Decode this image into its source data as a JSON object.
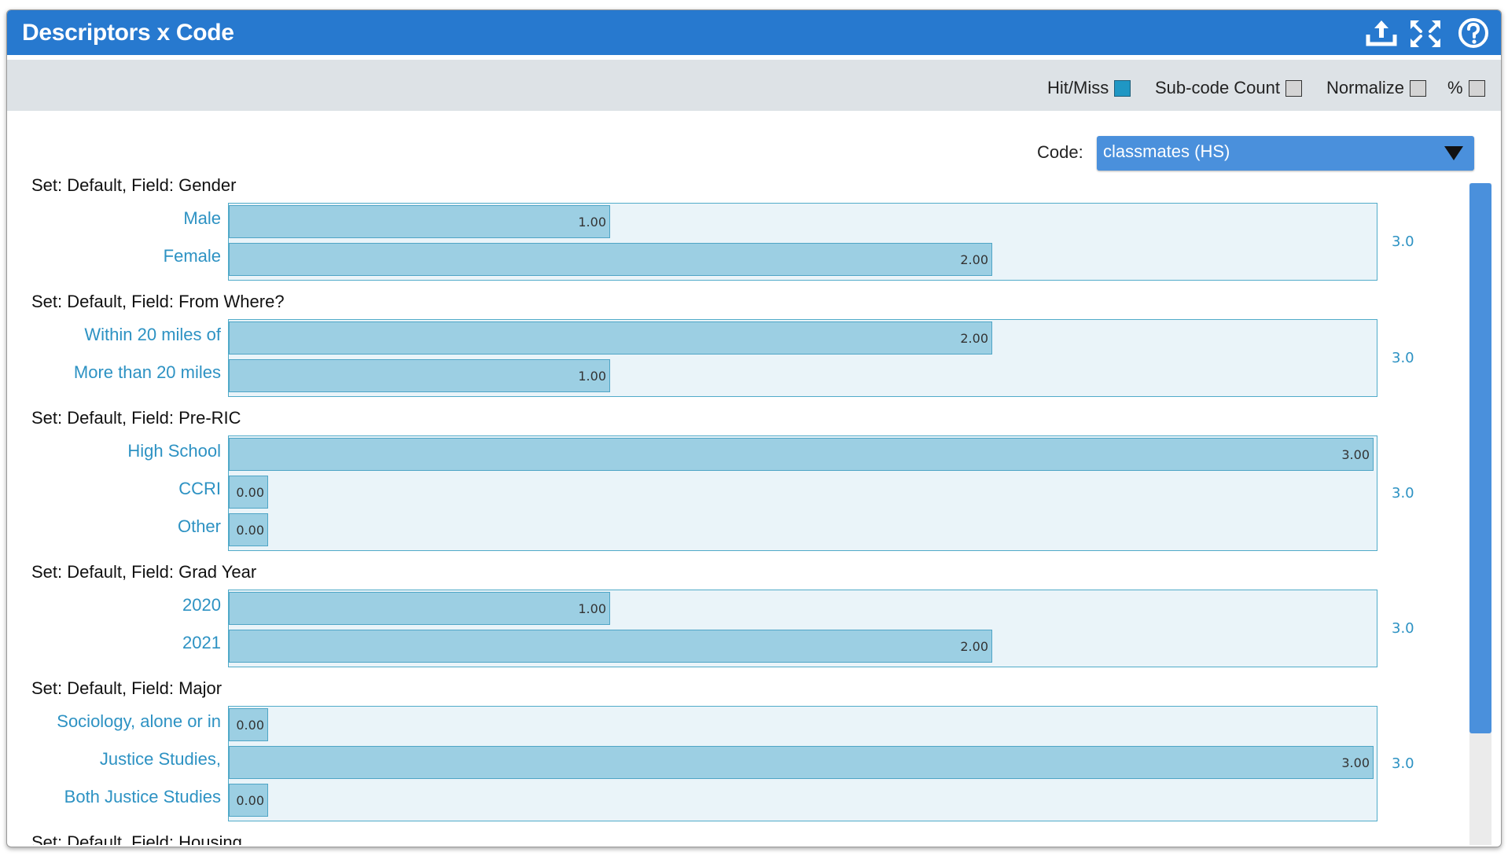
{
  "window": {
    "title": "Descriptors x Code",
    "icons": [
      "export-icon",
      "fullscreen-icon",
      "help-icon"
    ]
  },
  "toolbar": {
    "toggles": [
      {
        "label": "Hit/Miss",
        "checked": true
      },
      {
        "label": "Sub-code Count",
        "checked": false
      },
      {
        "label": "Normalize",
        "checked": false
      },
      {
        "label": "%",
        "checked": false
      }
    ]
  },
  "code": {
    "label": "Code:",
    "selected": "classmates (HS)"
  },
  "colors": {
    "title_bar": "#2779cf",
    "bar_fill": "#9ccfe3",
    "bar_border": "#4fa5c6",
    "panel_bg": "#eaf4f9",
    "label_text": "#2d92c3",
    "toggle_on": "#1f97c4"
  },
  "chart_data": {
    "type": "bar",
    "orientation": "horizontal",
    "scale_max": 3.0,
    "groups": [
      {
        "header": "Set: Default, Field: Gender",
        "total": "3.0",
        "rows": [
          {
            "label": "Male",
            "value": 1.0,
            "display": "1.00"
          },
          {
            "label": "Female",
            "value": 2.0,
            "display": "2.00"
          }
        ]
      },
      {
        "header": "Set: Default, Field: From Where?",
        "total": "3.0",
        "rows": [
          {
            "label": "Within 20 miles of",
            "value": 2.0,
            "display": "2.00"
          },
          {
            "label": "More than 20 miles",
            "value": 1.0,
            "display": "1.00"
          }
        ]
      },
      {
        "header": "Set: Default, Field: Pre-RIC",
        "total": "3.0",
        "rows": [
          {
            "label": "High School",
            "value": 3.0,
            "display": "3.00"
          },
          {
            "label": "CCRI",
            "value": 0.0,
            "display": "0.00"
          },
          {
            "label": "Other",
            "value": 0.0,
            "display": "0.00"
          }
        ]
      },
      {
        "header": "Set: Default, Field: Grad Year",
        "total": "3.0",
        "rows": [
          {
            "label": "2020",
            "value": 1.0,
            "display": "1.00"
          },
          {
            "label": "2021",
            "value": 2.0,
            "display": "2.00"
          }
        ]
      },
      {
        "header": "Set: Default, Field: Major",
        "total": "3.0",
        "rows": [
          {
            "label": "Sociology, alone or in",
            "value": 0.0,
            "display": "0.00"
          },
          {
            "label": "Justice Studies,",
            "value": 3.0,
            "display": "3.00"
          },
          {
            "label": "Both Justice Studies",
            "value": 0.0,
            "display": "0.00"
          }
        ]
      },
      {
        "header": "Set: Default, Field: Housing",
        "total": "",
        "rows": []
      }
    ]
  }
}
